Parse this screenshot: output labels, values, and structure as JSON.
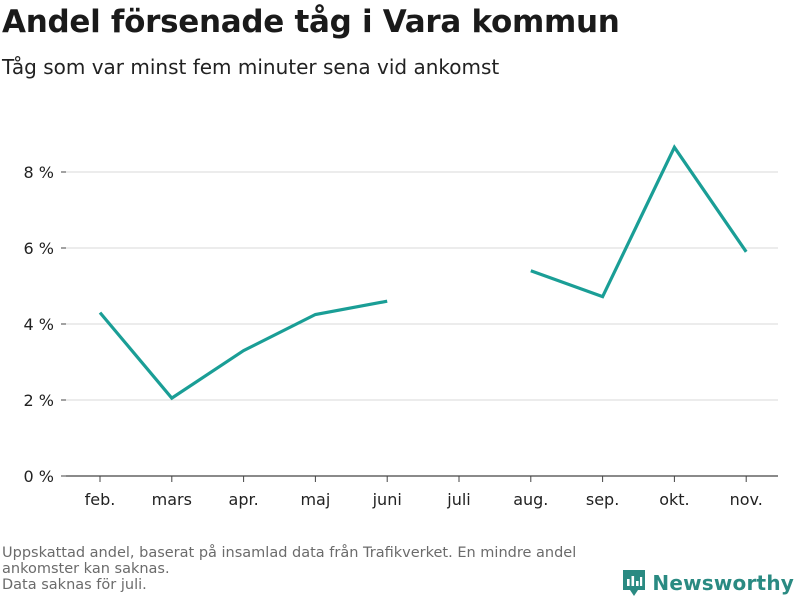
{
  "header": {
    "title": "Andel försenade tåg i Vara kommun",
    "subtitle": "Tåg som var minst fem minuter sena vid ankomst"
  },
  "footnote": {
    "line1": "Uppskattad andel, baserat på insamlad data från Trafikverket. En mindre andel",
    "line2": "ankomster kan saknas.",
    "line3": "Data saknas för juli."
  },
  "brand": {
    "name": "Newsworthy",
    "icon": "newsworthy-logo-icon",
    "color": "#2a8a82"
  },
  "chart_data": {
    "type": "line",
    "categories": [
      "feb.",
      "mars",
      "apr.",
      "maj",
      "juni",
      "juli",
      "aug.",
      "sep.",
      "okt.",
      "nov."
    ],
    "series": [
      {
        "values": [
          4.3,
          2.05,
          3.3,
          4.25,
          4.6,
          null,
          5.4,
          4.72,
          8.65,
          5.9
        ],
        "color": "#1a9e96"
      }
    ],
    "ylim": [
      0,
      9
    ],
    "yticks": [
      0,
      2,
      4,
      6,
      8
    ],
    "ytick_labels": [
      "0 %",
      "2 %",
      "4 %",
      "6 %",
      "8 %"
    ],
    "xlabel": "",
    "ylabel": "",
    "grid": true,
    "legend": "none"
  }
}
